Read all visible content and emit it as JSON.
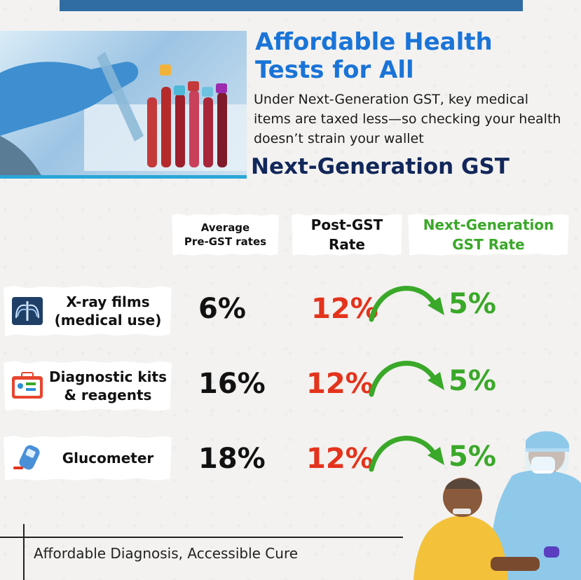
{
  "title_line1": "Affordable Health",
  "title_line2": "Tests for All",
  "subtitle": "Under Next-Generation GST, key medical items are taxed less—so checking your health doesn’t strain your wallet",
  "section_title": "Next-Generation GST",
  "columns": {
    "pre_line1": "Average",
    "pre_line2": "Pre-GST rates",
    "post_line1": "Post-GST",
    "post_line2": "Rate",
    "next_line1": "Next-Generation",
    "next_line2": "GST Rate"
  },
  "rows": [
    {
      "label_line1": "X-ray films",
      "label_line2": "(medical use)",
      "icon": "xray-icon",
      "pre": "6%",
      "post": "12%",
      "next": "5%"
    },
    {
      "label_line1": "Diagnostic kits",
      "label_line2": "& reagents",
      "icon": "diagnostic-kit-icon",
      "pre": "16%",
      "post": "12%",
      "next": "5%"
    },
    {
      "label_line1": "Glucometer",
      "label_line2": "",
      "icon": "glucometer-icon",
      "pre": "18%",
      "post": "12%",
      "next": "5%"
    }
  ],
  "footer": "Affordable Diagnosis, Accessible Cure",
  "colors": {
    "title": "#1a74d8",
    "section": "#12275a",
    "post": "#e4331c",
    "next": "#3aa829",
    "topbar": "#2f6da3"
  }
}
